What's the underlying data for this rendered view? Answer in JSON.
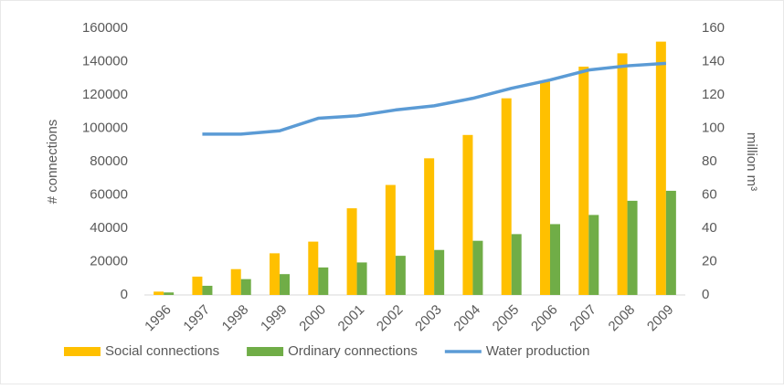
{
  "chart_data": {
    "type": "bar",
    "categories": [
      "1996",
      "1997",
      "1998",
      "1999",
      "2000",
      "2001",
      "2002",
      "2003",
      "2004",
      "2005",
      "2006",
      "2007",
      "2008",
      "2009"
    ],
    "series": [
      {
        "name": "Social connections",
        "color": "#ffc000",
        "values": [
          2000,
          11000,
          15500,
          25000,
          32000,
          52000,
          66000,
          82000,
          96000,
          118000,
          128000,
          137000,
          145000,
          152000
        ]
      },
      {
        "name": "Ordinary connections",
        "color": "#70ad47",
        "values": [
          1500,
          5500,
          9500,
          12500,
          16500,
          19500,
          23500,
          27000,
          32500,
          36500,
          42500,
          48000,
          56500,
          62500
        ]
      },
      {
        "name": "Water production",
        "color": "#5b9bd5",
        "type": "line",
        "axis": "y2",
        "values": [
          null,
          96.5,
          96.5,
          98.5,
          106,
          107.5,
          111,
          113.5,
          118,
          124,
          129,
          135,
          137.5,
          139
        ]
      }
    ],
    "ylabel": "# connections",
    "y2label": "million m³",
    "ylim": [
      0,
      160000
    ],
    "yticks": [
      0,
      20000,
      40000,
      60000,
      80000,
      100000,
      120000,
      140000,
      160000
    ],
    "y2lim": [
      0,
      160
    ],
    "y2ticks": [
      0,
      20,
      40,
      60,
      80,
      100,
      120,
      140,
      160
    ],
    "grid": false,
    "legend": "bottom"
  }
}
